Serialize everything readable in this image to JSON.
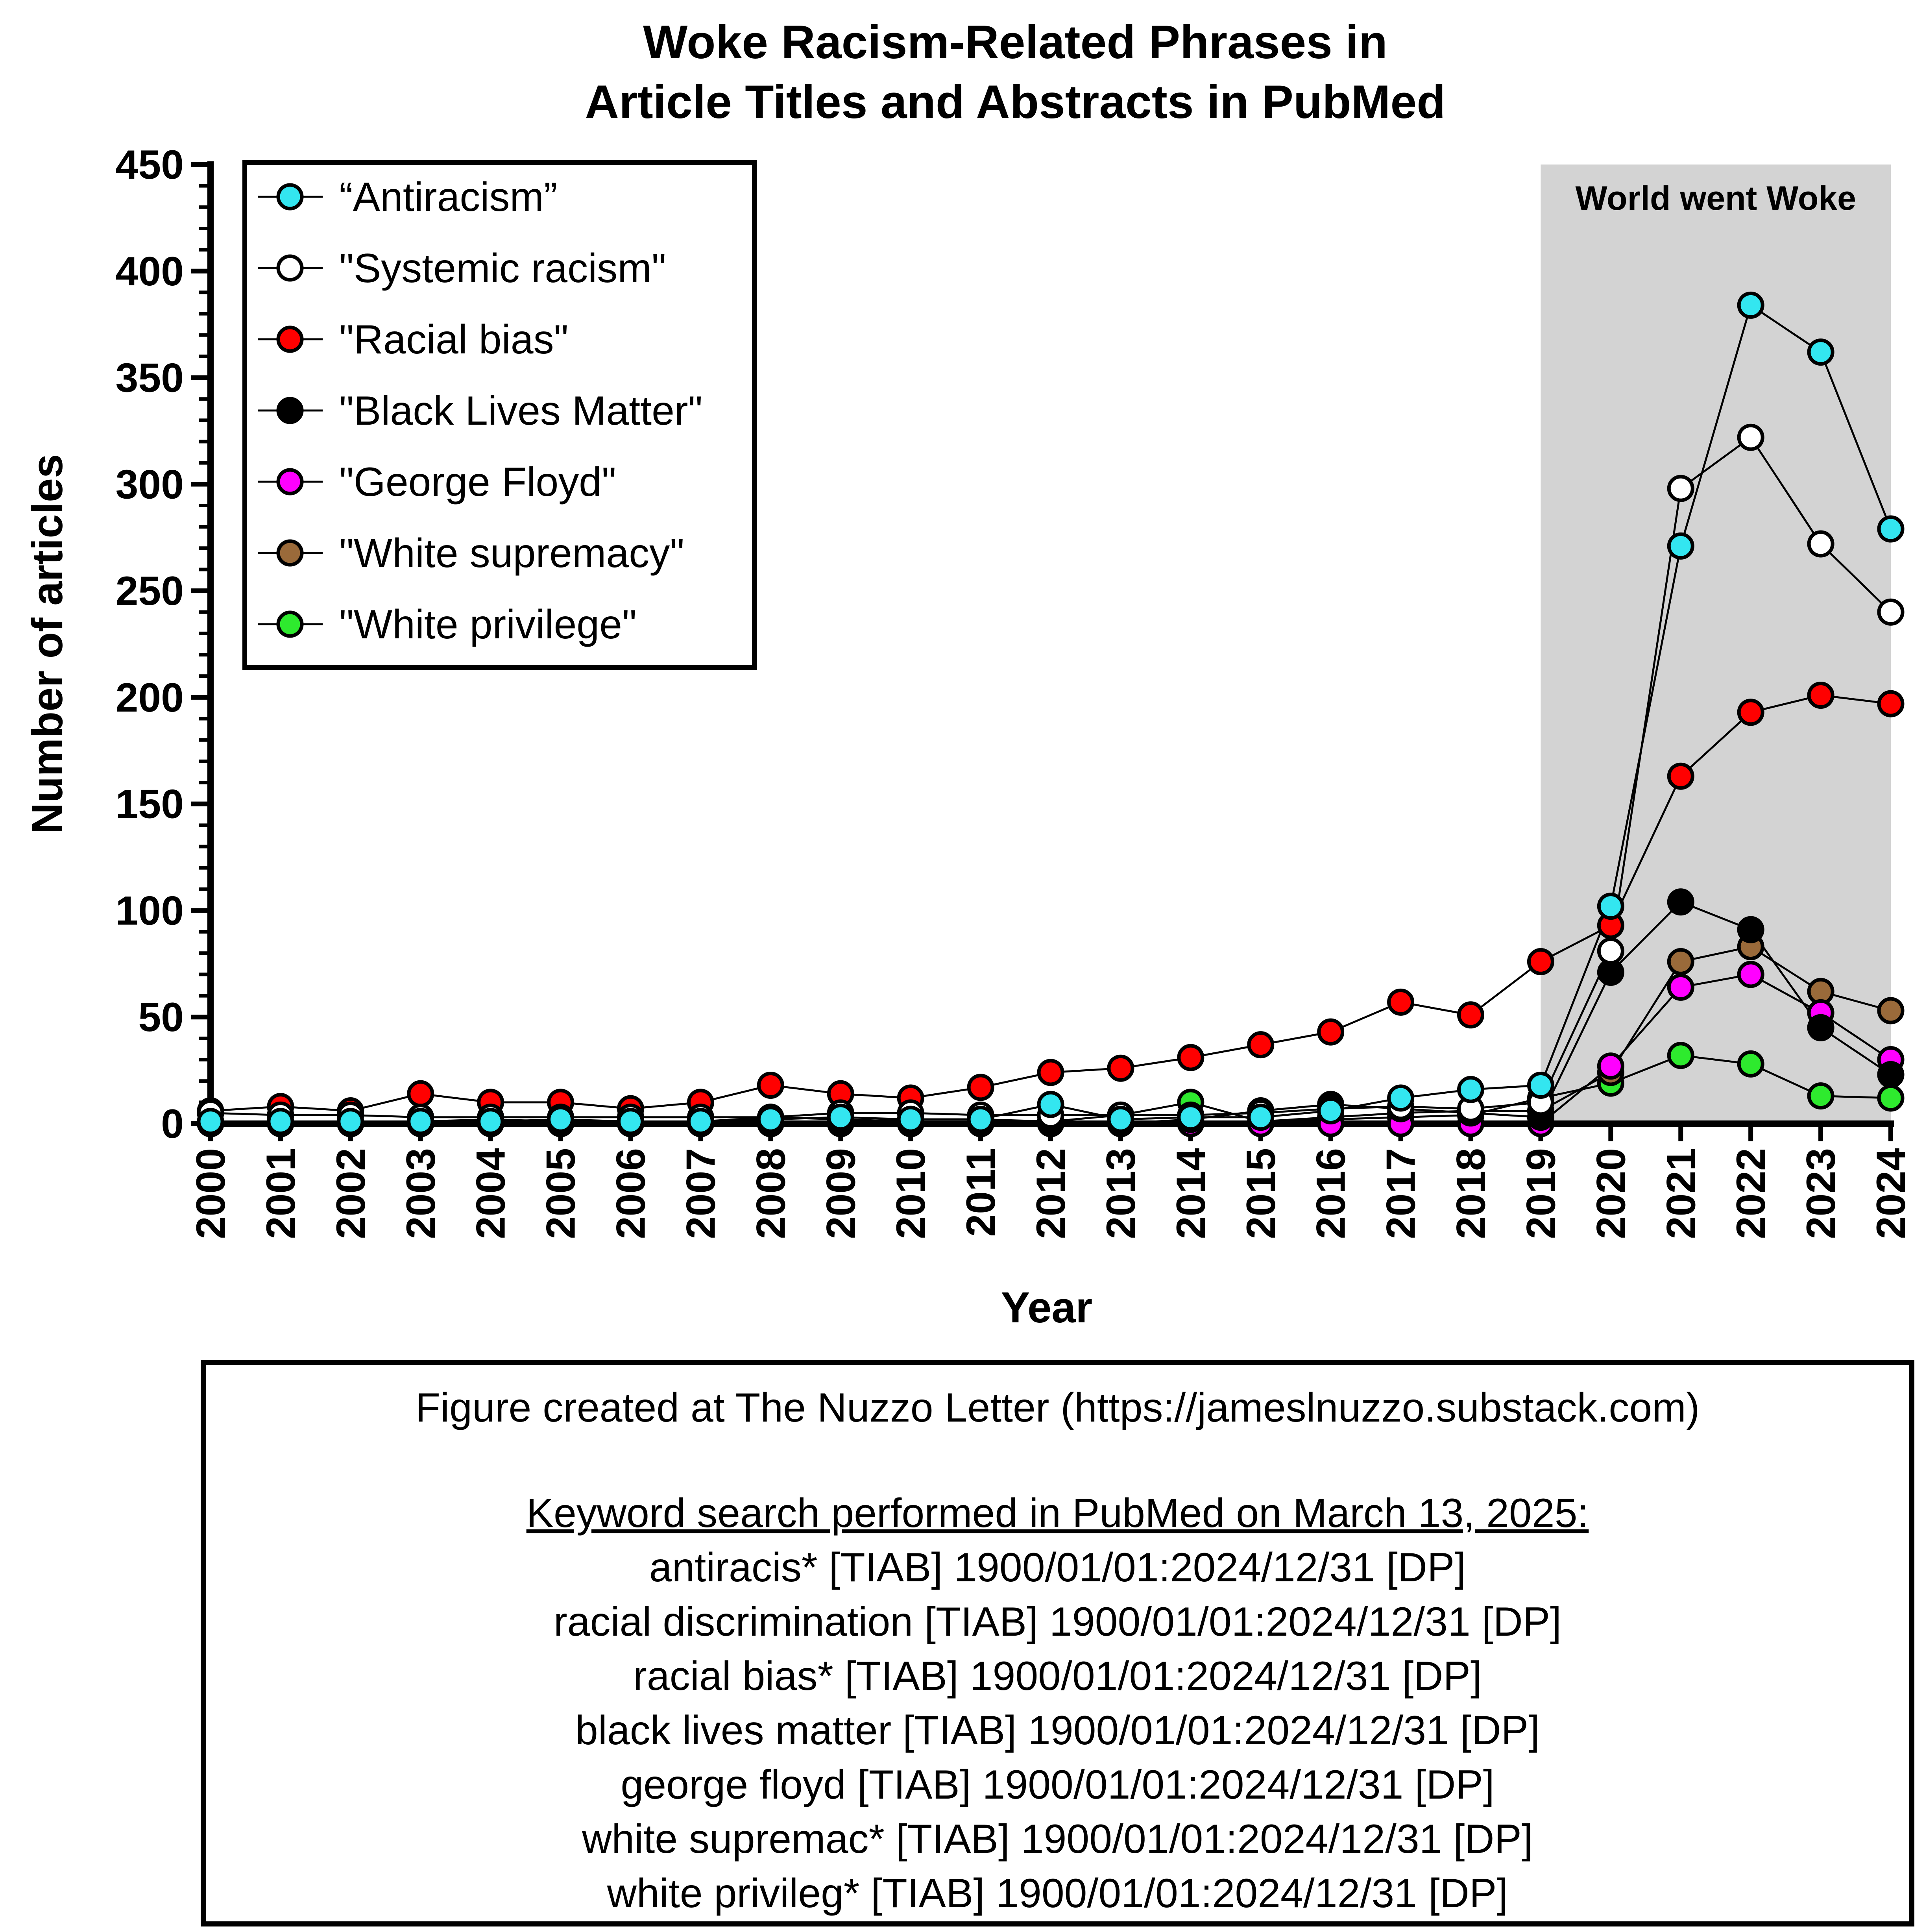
{
  "chart_data": {
    "type": "line",
    "title": [
      "Woke Racism-Related Phrases in",
      "Article Titles and Abstracts in PubMed"
    ],
    "xlabel": "Year",
    "ylabel": "Number of articles",
    "ylim": [
      0,
      450
    ],
    "yticks": [
      0,
      50,
      100,
      150,
      200,
      250,
      300,
      350,
      400,
      450
    ],
    "categories": [
      "2000",
      "2001",
      "2002",
      "2003",
      "2004",
      "2005",
      "2006",
      "2007",
      "2008",
      "2009",
      "2010",
      "2011",
      "2012",
      "2013",
      "2014",
      "2015",
      "2016",
      "2017",
      "2018",
      "2019",
      "2020",
      "2021",
      "2022",
      "2023",
      "2024"
    ],
    "highlight": {
      "label": "World went Woke",
      "from": "2019",
      "to": "2024",
      "color": "#d3d3d3"
    },
    "legend_position": "top-left",
    "series": [
      {
        "name": "“Antiracism”",
        "color": "#33e6f0",
        "values": [
          1,
          1,
          1,
          1,
          1,
          2,
          1,
          1,
          2,
          3,
          2,
          2,
          9,
          2,
          3,
          3,
          6,
          12,
          16,
          18,
          102,
          271,
          384,
          362,
          279
        ]
      },
      {
        "name": "\"Systemic racism\"",
        "color": "#ffffff",
        "values": [
          5,
          4,
          4,
          3,
          3,
          3,
          3,
          3,
          3,
          5,
          5,
          4,
          4,
          4,
          4,
          5,
          7,
          8,
          7,
          10,
          81,
          298,
          322,
          272,
          240
        ]
      },
      {
        "name": "\"Racial bias\"",
        "color": "#ff0000",
        "values": [
          6,
          8,
          6,
          14,
          10,
          10,
          7,
          10,
          18,
          14,
          12,
          17,
          24,
          26,
          31,
          37,
          43,
          57,
          51,
          76,
          93,
          163,
          193,
          201,
          197
        ]
      },
      {
        "name": "\"Black Lives Matter\"",
        "color": "#000000",
        "values": [
          0,
          0,
          0,
          0,
          0,
          0,
          0,
          0,
          0,
          0,
          0,
          0,
          0,
          0,
          2,
          6,
          9,
          7,
          5,
          3,
          71,
          104,
          91,
          45,
          23
        ]
      },
      {
        "name": "\"George Floyd\"",
        "color": "#ff00ff",
        "values": [
          0,
          0,
          0,
          0,
          0,
          0,
          0,
          0,
          0,
          0,
          0,
          0,
          0,
          0,
          0,
          0,
          0,
          0,
          0,
          0,
          27,
          64,
          70,
          52,
          30
        ]
      },
      {
        "name": "\"White supremacy\"",
        "color": "#9a6a3a",
        "values": [
          1,
          1,
          1,
          1,
          2,
          1,
          1,
          1,
          1,
          1,
          2,
          2,
          1,
          1,
          1,
          1,
          3,
          5,
          6,
          6,
          24,
          76,
          83,
          62,
          53
        ]
      },
      {
        "name": "\"White privilege\"",
        "color": "#2eea2e",
        "values": [
          0,
          0,
          0,
          1,
          1,
          1,
          1,
          1,
          3,
          2,
          1,
          1,
          1,
          4,
          10,
          1,
          2,
          3,
          4,
          12,
          19,
          32,
          28,
          13,
          12
        ]
      }
    ]
  },
  "notes": {
    "credit": "Figure created at The Nuzzo Letter (https://jameslnuzzo.substack.com)",
    "search_heading": "Keyword search performed in PubMed on March 13, 2025:",
    "queries": [
      "antiracis* [TIAB] 1900/01/01:2024/12/31 [DP]",
      "racial discrimination [TIAB] 1900/01/01:2024/12/31 [DP]",
      "racial bias* [TIAB] 1900/01/01:2024/12/31 [DP]",
      "black lives matter [TIAB] 1900/01/01:2024/12/31 [DP]",
      "george floyd [TIAB] 1900/01/01:2024/12/31 [DP]",
      "white supremac* [TIAB] 1900/01/01:2024/12/31 [DP]",
      "white privileg* [TIAB] 1900/01/01:2024/12/31 [DP]"
    ]
  }
}
